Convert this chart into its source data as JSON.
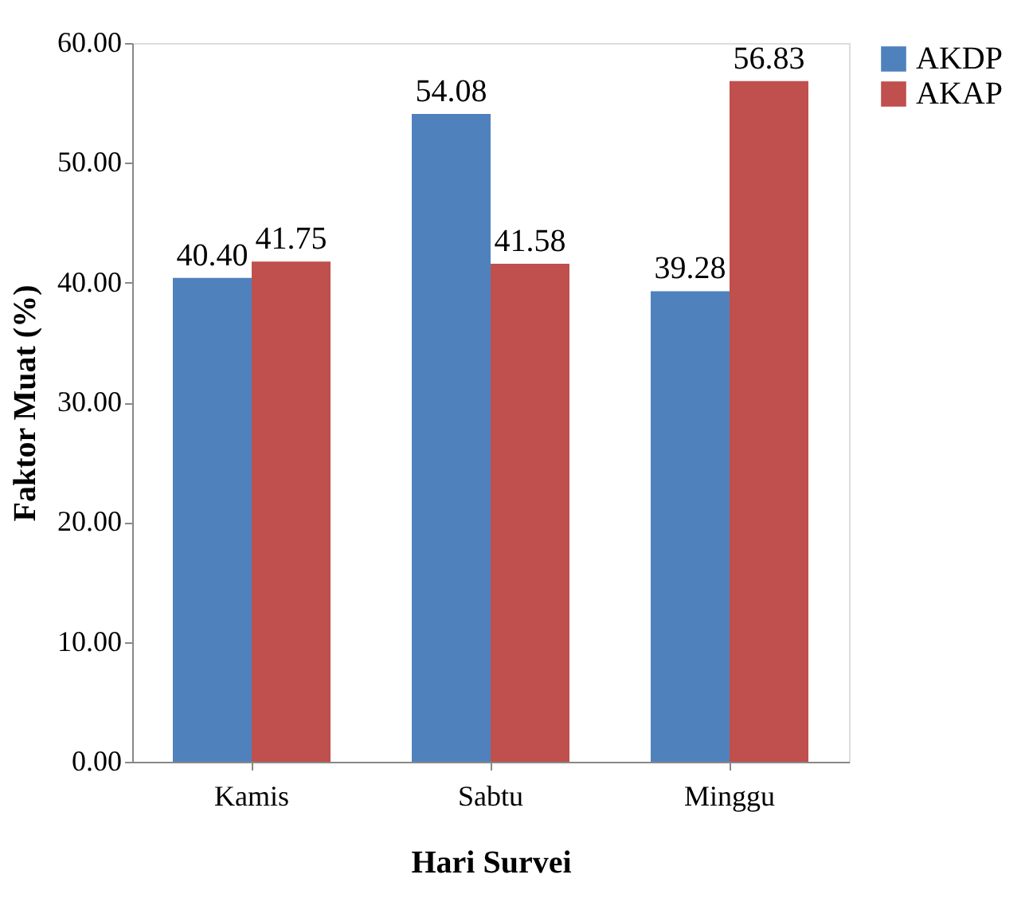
{
  "chart_data": {
    "type": "bar",
    "xlabel": "Hari Survei",
    "ylabel": "Faktor Muat (%)",
    "categories": [
      "Kamis",
      "Sabtu",
      "Minggu"
    ],
    "series": [
      {
        "name": "AKDP",
        "color": "#4f81bd",
        "values": [
          40.4,
          54.08,
          39.28
        ],
        "value_labels": [
          "40.40",
          "54.08",
          "39.28"
        ]
      },
      {
        "name": "AKAP",
        "color": "#c0504d",
        "values": [
          41.75,
          41.58,
          56.83
        ],
        "value_labels": [
          "41.75",
          "41.58",
          "56.83"
        ]
      }
    ],
    "ylim": [
      0,
      60
    ],
    "yticks": [
      {
        "value": 0,
        "label": "0.00"
      },
      {
        "value": 10,
        "label": "10.00"
      },
      {
        "value": 20,
        "label": "20.00"
      },
      {
        "value": 30,
        "label": "30.00"
      },
      {
        "value": 40,
        "label": "40.00"
      },
      {
        "value": 50,
        "label": "50.00"
      },
      {
        "value": 60,
        "label": "60.00"
      }
    ],
    "grid": false,
    "legend": "right"
  }
}
